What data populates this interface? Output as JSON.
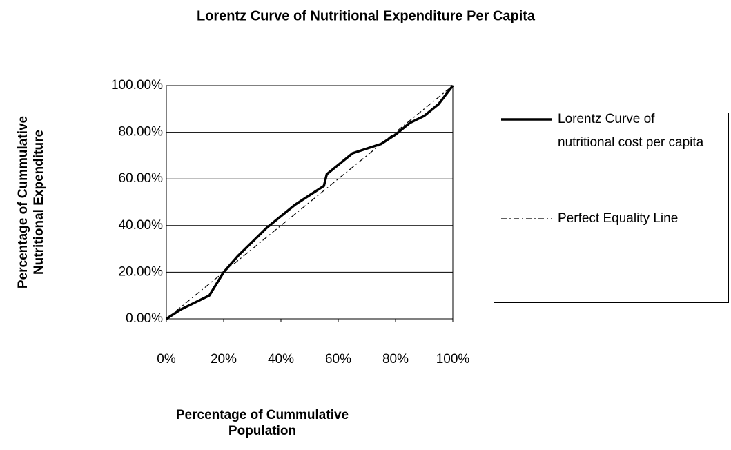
{
  "chart_data": {
    "type": "line",
    "title": "Lorentz Curve of Nutritional Expenditure Per Capita",
    "x_label": "Percentage of Cummulative Population",
    "y_label": "Percentage of Cummulative Nutritional Expenditure",
    "xlim": [
      0,
      100
    ],
    "ylim": [
      0,
      100
    ],
    "xticks": [
      {
        "value": 0,
        "label": "0%"
      },
      {
        "value": 20,
        "label": "20%"
      },
      {
        "value": 40,
        "label": "40%"
      },
      {
        "value": 60,
        "label": "60%"
      },
      {
        "value": 80,
        "label": "80%"
      },
      {
        "value": 100,
        "label": "100%"
      }
    ],
    "yticks": [
      {
        "value": 0,
        "label": "0.00%"
      },
      {
        "value": 20,
        "label": "20.00%"
      },
      {
        "value": 40,
        "label": "40.00%"
      },
      {
        "value": 60,
        "label": "60.00%"
      },
      {
        "value": 80,
        "label": "80.00%"
      },
      {
        "value": 100,
        "label": "100.00%"
      }
    ],
    "grid": true,
    "legend": "right",
    "series": [
      {
        "name": "Lorentz Curve of nutritional cost per capita",
        "color": "#000000",
        "dash": "solid",
        "x": [
          0,
          5,
          10,
          15,
          20,
          25,
          30,
          35,
          40,
          45,
          50,
          55,
          56,
          57,
          60,
          65,
          70,
          75,
          80,
          85,
          90,
          95,
          100
        ],
        "values": [
          0,
          4,
          7,
          10,
          20,
          27,
          33,
          39,
          44,
          49,
          53,
          57,
          62,
          63,
          66,
          71,
          73,
          75,
          79,
          84,
          87,
          92,
          100
        ]
      },
      {
        "name": "Perfect Equality Line",
        "color": "#000000",
        "dash": "dashdot",
        "x": [
          0,
          100
        ],
        "values": [
          0,
          100
        ]
      }
    ]
  }
}
